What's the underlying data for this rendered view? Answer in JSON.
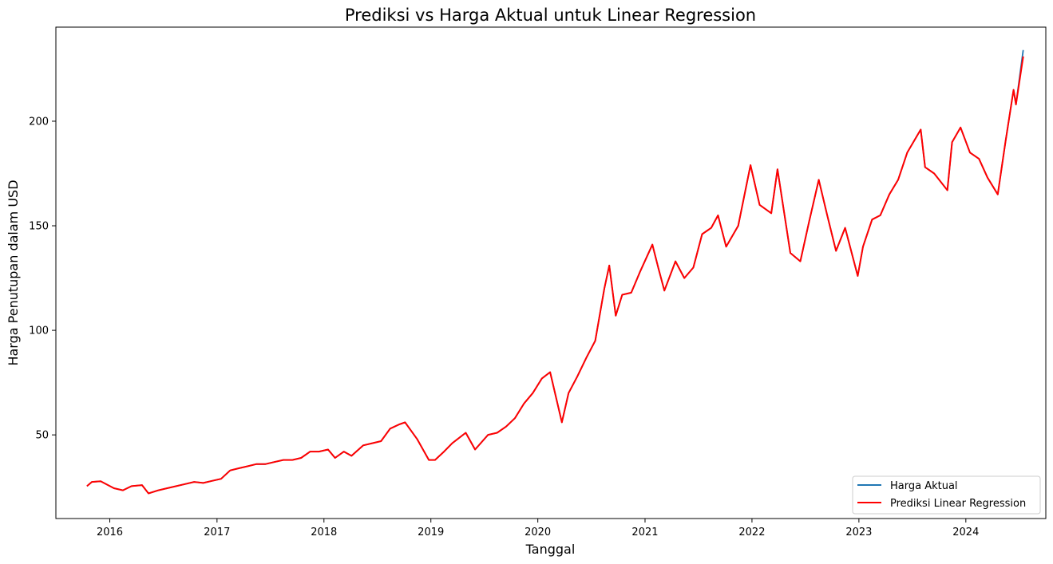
{
  "chart_data": {
    "type": "line",
    "title": "Prediksi vs Harga Aktual untuk Linear Regression",
    "xlabel": "Tanggal",
    "ylabel": "Harga Penutupan dalam USD",
    "xlim": [
      "2015-07-01",
      "2024-09-30"
    ],
    "ylim": [
      10,
      245
    ],
    "x_ticks": [
      "2016",
      "2017",
      "2018",
      "2019",
      "2020",
      "2021",
      "2022",
      "2023",
      "2024"
    ],
    "y_ticks": [
      50,
      100,
      150,
      200
    ],
    "grid": false,
    "legend_position": "lower right",
    "x": [
      "2015-10-15",
      "2015-11-01",
      "2015-12-01",
      "2016-01-15",
      "2016-02-15",
      "2016-03-15",
      "2016-04-20",
      "2016-05-12",
      "2016-06-15",
      "2016-07-15",
      "2016-08-15",
      "2016-09-15",
      "2016-10-15",
      "2016-11-15",
      "2016-12-15",
      "2017-01-15",
      "2017-02-15",
      "2017-03-15",
      "2017-04-15",
      "2017-05-15",
      "2017-06-15",
      "2017-07-15",
      "2017-08-15",
      "2017-09-15",
      "2017-10-15",
      "2017-11-15",
      "2017-12-15",
      "2018-01-15",
      "2018-02-08",
      "2018-03-10",
      "2018-04-05",
      "2018-05-15",
      "2018-06-15",
      "2018-07-15",
      "2018-08-15",
      "2018-09-15",
      "2018-10-05",
      "2018-11-15",
      "2018-12-25",
      "2019-01-15",
      "2019-02-15",
      "2019-03-15",
      "2019-04-30",
      "2019-06-01",
      "2019-07-15",
      "2019-08-15",
      "2019-09-15",
      "2019-10-15",
      "2019-11-15",
      "2019-12-15",
      "2020-01-15",
      "2020-02-12",
      "2020-03-23",
      "2020-04-15",
      "2020-05-15",
      "2020-06-15",
      "2020-07-15",
      "2020-08-15",
      "2020-09-01",
      "2020-09-23",
      "2020-10-15",
      "2020-11-15",
      "2020-12-15",
      "2021-01-26",
      "2021-02-15",
      "2021-03-08",
      "2021-04-15",
      "2021-05-15",
      "2021-06-15",
      "2021-07-15",
      "2021-08-15",
      "2021-09-07",
      "2021-10-05",
      "2021-11-15",
      "2021-12-27",
      "2022-01-27",
      "2022-03-08",
      "2022-03-29",
      "2022-05-12",
      "2022-06-15",
      "2022-07-15",
      "2022-08-17",
      "2022-09-15",
      "2022-10-15",
      "2022-11-15",
      "2022-12-28",
      "2023-01-15",
      "2023-02-15",
      "2023-03-15",
      "2023-04-15",
      "2023-05-15",
      "2023-06-15",
      "2023-07-31",
      "2023-08-15",
      "2023-09-15",
      "2023-10-30",
      "2023-11-15",
      "2023-12-14",
      "2024-01-15",
      "2024-02-15",
      "2024-03-15",
      "2024-04-19",
      "2024-05-15",
      "2024-06-12",
      "2024-06-20",
      "2024-07-15"
    ],
    "series": [
      {
        "name": "Harga Aktual",
        "color": "#1f77b4",
        "values": [
          25.5,
          27.5,
          27.8,
          24.5,
          23.5,
          25.5,
          26.0,
          22.0,
          23.5,
          24.5,
          25.5,
          26.5,
          27.5,
          27.0,
          28.0,
          29.0,
          33.0,
          34.0,
          35.0,
          36.0,
          36.0,
          37.0,
          38.0,
          38.0,
          39.0,
          42.0,
          42.0,
          43.0,
          39.0,
          42.0,
          40.0,
          45.0,
          46.0,
          47.0,
          53.0,
          55.0,
          56.0,
          48.0,
          38.0,
          38.0,
          42.0,
          46.0,
          51.0,
          43.0,
          50.0,
          51.0,
          54.0,
          58.0,
          65.0,
          70.0,
          77.0,
          80.0,
          56.0,
          70.0,
          78.0,
          87.0,
          95.0,
          120.0,
          131.0,
          107.0,
          117.0,
          118.0,
          128.0,
          141.0,
          130.0,
          119.0,
          133.0,
          125.0,
          130.0,
          146.0,
          149.0,
          155.0,
          140.0,
          150.0,
          179.0,
          160.0,
          156.0,
          177.0,
          137.0,
          133.0,
          152.0,
          172.0,
          155.0,
          138.0,
          149.0,
          126.0,
          140.0,
          153.0,
          155.0,
          165.0,
          172.0,
          185.0,
          196.0,
          178.0,
          175.0,
          167.0,
          190.0,
          197.0,
          185.0,
          182.0,
          173.0,
          165.0,
          190.0,
          215.0,
          208.0,
          234.0
        ]
      },
      {
        "name": "Prediksi Linear Regression",
        "color": "#ff0000",
        "values": [
          25.5,
          27.5,
          27.8,
          24.5,
          23.5,
          25.5,
          26.0,
          22.0,
          23.5,
          24.5,
          25.5,
          26.5,
          27.5,
          27.0,
          28.0,
          29.0,
          33.0,
          34.0,
          35.0,
          36.0,
          36.0,
          37.0,
          38.0,
          38.0,
          39.0,
          42.0,
          42.0,
          43.0,
          39.0,
          42.0,
          40.0,
          45.0,
          46.0,
          47.0,
          53.0,
          55.0,
          56.0,
          48.0,
          38.0,
          38.0,
          42.0,
          46.0,
          51.0,
          43.0,
          50.0,
          51.0,
          54.0,
          58.0,
          65.0,
          70.0,
          77.0,
          80.0,
          56.0,
          70.0,
          78.0,
          87.0,
          95.0,
          120.0,
          131.0,
          107.0,
          117.0,
          118.0,
          128.0,
          141.0,
          130.0,
          119.0,
          133.0,
          125.0,
          130.0,
          146.0,
          149.0,
          155.0,
          140.0,
          150.0,
          179.0,
          160.0,
          156.0,
          177.0,
          137.0,
          133.0,
          152.0,
          172.0,
          155.0,
          138.0,
          149.0,
          126.0,
          140.0,
          153.0,
          155.0,
          165.0,
          172.0,
          185.0,
          196.0,
          178.0,
          175.0,
          167.0,
          190.0,
          197.0,
          185.0,
          182.0,
          173.0,
          165.0,
          190.0,
          215.0,
          208.0,
          231.0
        ]
      }
    ]
  }
}
